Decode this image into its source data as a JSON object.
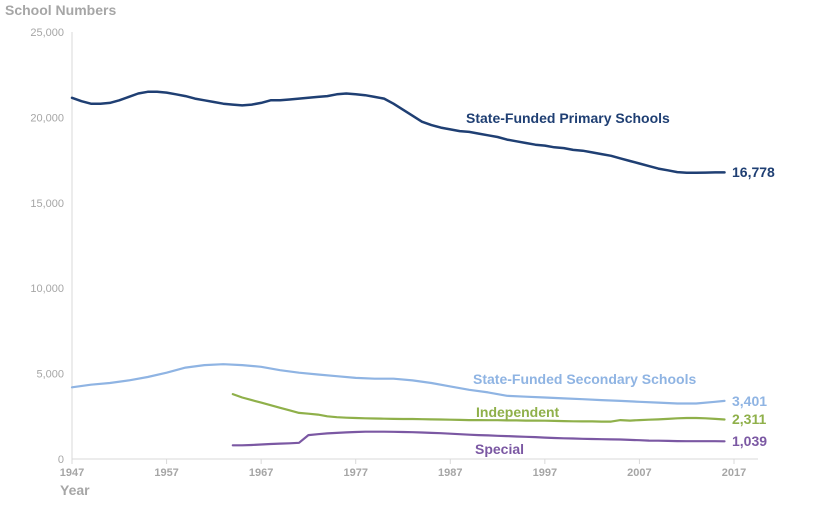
{
  "chart_data": {
    "type": "line",
    "ylabel": "School Numbers",
    "xlabel": "Year",
    "ylim": [
      0,
      25000
    ],
    "xlim": [
      1947,
      2017
    ],
    "y_ticks": [
      "0",
      "5,000",
      "10,000",
      "15,000",
      "20,000",
      "25,000"
    ],
    "y_tick_values": [
      0,
      5000,
      10000,
      15000,
      20000,
      25000
    ],
    "x_ticks": [
      "1947",
      "1957",
      "1967",
      "1977",
      "1987",
      "1997",
      "2007",
      "2017"
    ],
    "x_tick_values": [
      1947,
      1957,
      1967,
      1977,
      1987,
      1997,
      2007,
      2017
    ],
    "grid": false,
    "series": [
      {
        "name": "State-Funded Primary Schools",
        "color": "#1f3f73",
        "end_label": "16,778",
        "x": [
          1947,
          1948,
          1949,
          1950,
          1951,
          1952,
          1953,
          1954,
          1955,
          1956,
          1957,
          1958,
          1959,
          1960,
          1961,
          1962,
          1963,
          1964,
          1965,
          1966,
          1967,
          1968,
          1969,
          1970,
          1971,
          1972,
          1973,
          1974,
          1975,
          1976,
          1977,
          1978,
          1979,
          1980,
          1981,
          1982,
          1983,
          1984,
          1985,
          1986,
          1987,
          1988,
          1989,
          1990,
          1991,
          1992,
          1993,
          1994,
          1995,
          1996,
          1997,
          1998,
          1999,
          2000,
          2001,
          2002,
          2003,
          2004,
          2005,
          2006,
          2007,
          2008,
          2009,
          2010,
          2011,
          2012,
          2013,
          2014,
          2015,
          2016
        ],
        "y": [
          21150,
          20950,
          20800,
          20800,
          20850,
          21000,
          21200,
          21400,
          21500,
          21500,
          21450,
          21350,
          21250,
          21100,
          21000,
          20900,
          20800,
          20750,
          20700,
          20750,
          20850,
          21000,
          21000,
          21050,
          21100,
          21150,
          21200,
          21250,
          21350,
          21400,
          21350,
          21300,
          21200,
          21100,
          20800,
          20450,
          20100,
          19750,
          19550,
          19400,
          19300,
          19200,
          19150,
          19050,
          18950,
          18850,
          18700,
          18600,
          18500,
          18400,
          18350,
          18250,
          18200,
          18100,
          18050,
          17950,
          17850,
          17750,
          17600,
          17450,
          17300,
          17150,
          17000,
          16900,
          16800,
          16760,
          16760,
          16770,
          16778,
          16778
        ]
      },
      {
        "name": "State-Funded Secondary Schools",
        "color": "#8fb4e3",
        "end_label": "3,401",
        "x": [
          1947,
          1949,
          1951,
          1953,
          1955,
          1957,
          1959,
          1961,
          1963,
          1965,
          1967,
          1969,
          1971,
          1973,
          1975,
          1977,
          1979,
          1981,
          1983,
          1985,
          1987,
          1989,
          1991,
          1993,
          1995,
          1997,
          1999,
          2001,
          2003,
          2005,
          2007,
          2009,
          2011,
          2013,
          2015,
          2016
        ],
        "y": [
          4200,
          4350,
          4450,
          4600,
          4800,
          5050,
          5350,
          5500,
          5550,
          5500,
          5400,
          5200,
          5050,
          4950,
          4850,
          4750,
          4700,
          4700,
          4600,
          4450,
          4250,
          4050,
          3900,
          3700,
          3650,
          3600,
          3550,
          3500,
          3450,
          3400,
          3350,
          3300,
          3250,
          3250,
          3350,
          3401
        ]
      },
      {
        "name": "Independent",
        "color": "#8fb04a",
        "end_label": "2,311",
        "x": [
          1964,
          1965,
          1966,
          1967,
          1968,
          1969,
          1970,
          1971,
          1972,
          1973,
          1974,
          1975,
          1976,
          1977,
          1978,
          1979,
          1980,
          1981,
          1982,
          1983,
          1984,
          1985,
          1986,
          1987,
          1988,
          1989,
          1990,
          1991,
          1992,
          1993,
          1994,
          1995,
          1996,
          1997,
          1998,
          1999,
          2000,
          2001,
          2002,
          2003,
          2004,
          2005,
          2006,
          2007,
          2008,
          2009,
          2010,
          2011,
          2012,
          2013,
          2014,
          2015,
          2016
        ],
        "y": [
          3800,
          3600,
          3450,
          3300,
          3150,
          3000,
          2850,
          2700,
          2650,
          2600,
          2500,
          2450,
          2420,
          2400,
          2380,
          2370,
          2360,
          2350,
          2340,
          2340,
          2330,
          2320,
          2310,
          2300,
          2290,
          2280,
          2280,
          2270,
          2270,
          2260,
          2260,
          2250,
          2250,
          2240,
          2230,
          2220,
          2210,
          2200,
          2200,
          2190,
          2190,
          2280,
          2250,
          2280,
          2300,
          2320,
          2350,
          2380,
          2400,
          2400,
          2380,
          2350,
          2311
        ]
      },
      {
        "name": "Special",
        "color": "#7b58a3",
        "end_label": "1,039",
        "x": [
          1964,
          1965,
          1966,
          1967,
          1968,
          1969,
          1970,
          1971,
          1972,
          1973,
          1974,
          1975,
          1976,
          1977,
          1978,
          1979,
          1980,
          1981,
          1982,
          1983,
          1984,
          1985,
          1986,
          1987,
          1988,
          1989,
          1990,
          1991,
          1992,
          1993,
          1994,
          1995,
          1996,
          1997,
          1998,
          1999,
          2000,
          2001,
          2002,
          2003,
          2004,
          2005,
          2006,
          2007,
          2008,
          2009,
          2010,
          2011,
          2012,
          2013,
          2014,
          2015,
          2016
        ],
        "y": [
          800,
          800,
          820,
          850,
          880,
          900,
          920,
          950,
          1400,
          1450,
          1500,
          1530,
          1560,
          1580,
          1600,
          1600,
          1600,
          1590,
          1580,
          1570,
          1550,
          1530,
          1510,
          1480,
          1450,
          1420,
          1400,
          1380,
          1360,
          1340,
          1320,
          1300,
          1280,
          1250,
          1230,
          1210,
          1200,
          1180,
          1170,
          1160,
          1150,
          1140,
          1120,
          1100,
          1080,
          1070,
          1060,
          1050,
          1045,
          1040,
          1040,
          1040,
          1039
        ]
      }
    ]
  }
}
